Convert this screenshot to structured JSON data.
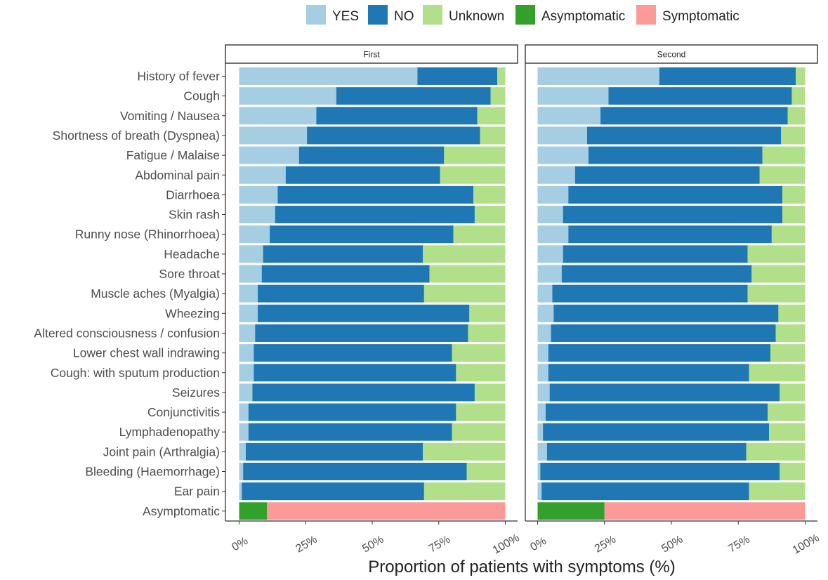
{
  "chart_data": {
    "type": "bar",
    "orientation": "horizontal",
    "stacked": true,
    "xlabel": "Proportion of patients with symptoms  (%)",
    "xlim": [
      0,
      100
    ],
    "xticks": [
      "0%",
      "25%",
      "50%",
      "75%",
      "100%"
    ],
    "legend": {
      "placement": "top",
      "entries": [
        {
          "label": "YES",
          "color": "#a6cee3"
        },
        {
          "label": "NO",
          "color": "#1f78b4"
        },
        {
          "label": "Unknown",
          "color": "#b2df8a"
        },
        {
          "label": "Asymptomatic",
          "color": "#33a02c"
        },
        {
          "label": "Symptomatic",
          "color": "#fb9a99"
        }
      ]
    },
    "categories": [
      "History of fever",
      "Cough",
      "Vomiting / Nausea",
      "Shortness of breath (Dyspnea)",
      "Fatigue / Malaise",
      "Abdominal pain",
      "Diarrhoea",
      "Skin rash",
      "Runny nose (Rhinorrhoea)",
      "Headache",
      "Sore throat",
      "Muscle aches (Myalgia)",
      "Wheezing",
      "Altered consciousness / confusion",
      "Lower chest wall indrawing",
      "Cough: with sputum production",
      "Seizures",
      "Conjunctivitis",
      "Lymphadenopathy",
      "Joint pain (Arthralgia)",
      "Bleeding (Haemorrhage)",
      "Ear pain",
      "Asymptomatic"
    ],
    "panels": [
      {
        "title": "First",
        "series": [
          {
            "name": "YES",
            "values": [
              67,
              36.5,
              29,
              25.5,
              22.5,
              17.5,
              14.5,
              13.5,
              11.5,
              9,
              8.5,
              7,
              7,
              6,
              5.5,
              5.5,
              5,
              3.5,
              3.5,
              2.5,
              1.5,
              1
            ]
          },
          {
            "name": "NO",
            "values": [
              30,
              58,
              60.5,
              65,
              54.5,
              58,
              73.5,
              75,
              69,
              60,
              63,
              62.5,
              79.5,
              80,
              74.5,
              76,
              83.5,
              78,
              76.5,
              66.5,
              84,
              68.5
            ]
          },
          {
            "name": "Unknown",
            "values": [
              3,
              5.5,
              10.5,
              9.5,
              23,
              24.5,
              12,
              11.5,
              19.5,
              31,
              28.5,
              30.5,
              13.5,
              14,
              20,
              18.5,
              11.5,
              18.5,
              20,
              31,
              14.5,
              30.5
            ]
          }
        ],
        "asymptomatic": {
          "Asymptomatic": 10.5,
          "Symptomatic": 89.5
        }
      },
      {
        "title": "Second",
        "series": [
          {
            "name": "YES",
            "values": [
              45.5,
              26.5,
              23.5,
              18.5,
              19,
              14,
              11.5,
              9.5,
              11.5,
              9.5,
              9,
              5.5,
              6,
              5,
              4,
              4,
              4.5,
              3,
              2,
              3.5,
              1,
              1.5
            ]
          },
          {
            "name": "NO",
            "values": [
              51,
              68.5,
              70,
              72.5,
              65,
              69,
              80,
              82,
              76,
              69,
              71,
              73,
              84,
              84,
              83,
              75,
              86,
              83,
              84.5,
              74.5,
              89.5,
              77.5
            ]
          },
          {
            "name": "Unknown",
            "values": [
              3.5,
              5,
              6.5,
              9,
              16,
              17,
              8.5,
              8.5,
              12.5,
              21.5,
              20,
              21.5,
              10,
              11,
              13,
              21,
              9.5,
              14,
              13.5,
              22,
              9.5,
              21
            ]
          }
        ],
        "asymptomatic": {
          "Asymptomatic": 25,
          "Symptomatic": 75
        }
      }
    ],
    "grid": false
  }
}
